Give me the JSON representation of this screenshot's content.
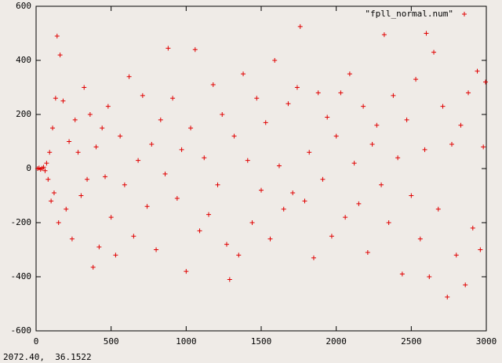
{
  "chart_data": {
    "type": "scatter",
    "xlim": [
      0,
      3000
    ],
    "xticks": [
      0,
      500,
      1000,
      1500,
      2000,
      2500,
      3000
    ],
    "ylim": [
      -600,
      600
    ],
    "yticks": [
      -600,
      -400,
      -200,
      0,
      200,
      400,
      600
    ],
    "legend": "top-right",
    "series": [
      {
        "name": "\"fpll_normal.num\"",
        "color": "#e00000",
        "x": [
          10,
          20,
          30,
          40,
          50,
          60,
          70,
          80,
          90,
          100,
          110,
          120,
          130,
          140,
          150,
          160,
          180,
          200,
          220,
          240,
          260,
          280,
          300,
          320,
          340,
          360,
          380,
          400,
          420,
          440,
          460,
          480,
          500,
          530,
          560,
          590,
          620,
          650,
          680,
          710,
          740,
          770,
          800,
          830,
          860,
          880,
          910,
          940,
          970,
          1000,
          1030,
          1060,
          1090,
          1120,
          1150,
          1180,
          1210,
          1240,
          1270,
          1290,
          1320,
          1350,
          1380,
          1410,
          1440,
          1470,
          1500,
          1530,
          1560,
          1590,
          1620,
          1650,
          1680,
          1710,
          1740,
          1760,
          1790,
          1820,
          1850,
          1880,
          1910,
          1940,
          1970,
          2000,
          2030,
          2060,
          2090,
          2120,
          2150,
          2180,
          2210,
          2240,
          2270,
          2300,
          2320,
          2350,
          2380,
          2410,
          2440,
          2470,
          2500,
          2530,
          2560,
          2590,
          2600,
          2620,
          2650,
          2680,
          2710,
          2740,
          2770,
          2800,
          2830,
          2860,
          2880,
          2910,
          2940,
          2960,
          2980,
          2995
        ],
        "values": [
          0,
          2,
          -3,
          1,
          5,
          -8,
          20,
          -40,
          60,
          -120,
          150,
          -90,
          260,
          490,
          -200,
          420,
          250,
          -150,
          100,
          -260,
          180,
          60,
          -100,
          300,
          -40,
          200,
          -365,
          80,
          -290,
          150,
          -30,
          230,
          -180,
          -320,
          120,
          -60,
          340,
          -250,
          30,
          270,
          -140,
          90,
          -300,
          180,
          -20,
          445,
          260,
          -110,
          70,
          -380,
          150,
          440,
          -230,
          40,
          -170,
          310,
          -60,
          200,
          -280,
          -410,
          120,
          -320,
          350,
          30,
          -200,
          260,
          -80,
          170,
          -260,
          400,
          10,
          -150,
          240,
          -90,
          300,
          525,
          -120,
          60,
          -330,
          280,
          -40,
          190,
          -250,
          120,
          280,
          -180,
          350,
          20,
          -130,
          230,
          -310,
          90,
          160,
          -60,
          495,
          -200,
          270,
          40,
          -390,
          180,
          -100,
          330,
          -260,
          70,
          500,
          -400,
          430,
          -150,
          230,
          -475,
          90,
          -320,
          160,
          -430,
          280,
          -220,
          360,
          -300,
          80,
          320
        ]
      }
    ]
  },
  "status": "2072.40,  36.1522"
}
